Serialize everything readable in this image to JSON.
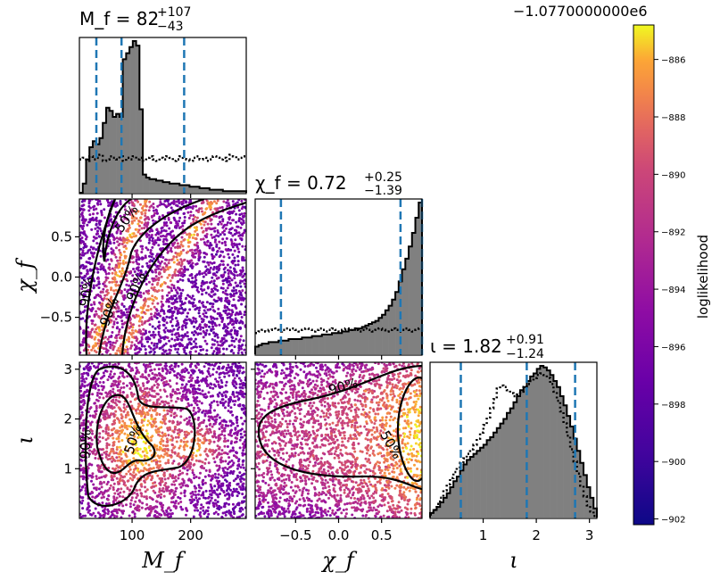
{
  "chart_data": {
    "type": "corner",
    "parameters": [
      {
        "key": "Mf",
        "axis_label": "M_f",
        "range": [
          10,
          295
        ],
        "ticks": [
          100,
          200
        ],
        "tick_labels": [
          "100",
          "200"
        ],
        "title_lhs": "M_f = 82",
        "title_sup": "+107",
        "title_sub": "−43",
        "median": 82,
        "lower": 39,
        "upper": 189
      },
      {
        "key": "chif",
        "axis_label": "χ_f",
        "range": [
          -0.97,
          0.97
        ],
        "ticks": [
          -0.5,
          0.0,
          0.5
        ],
        "tick_labels": [
          "−0.5",
          "0.0",
          "0.5"
        ],
        "title_lhs": "χ_f = 0.72",
        "title_sup": "+0.25",
        "title_sub": "−1.39",
        "median": 0.72,
        "lower": -0.67,
        "upper": 0.97
      },
      {
        "key": "iota",
        "axis_label": "ι",
        "range": [
          0.0,
          3.14
        ],
        "ticks": [
          1,
          2,
          3
        ],
        "tick_labels": [
          "1",
          "2",
          "3"
        ],
        "title_lhs": "ι = 1.82",
        "title_sup": "+0.91",
        "title_sub": "−1.24",
        "median": 1.82,
        "lower": 0.58,
        "upper": 2.73
      }
    ],
    "y_tick_labels": {
      "chif": [
        "0.5",
        "0.0",
        "−0.5"
      ],
      "iota": [
        "3",
        "2",
        "1"
      ]
    },
    "histograms": {
      "Mf": {
        "posterior": [
          0,
          0.06,
          0.22,
          0.3,
          0.34,
          0.32,
          0.36,
          0.46,
          0.56,
          0.54,
          0.5,
          0.52,
          0.5,
          0.88,
          0.92,
          0.96,
          1.0,
          0.97,
          0.55,
          0.12,
          0.1,
          0.09,
          0.09,
          0.08,
          0.08,
          0.07,
          0.07,
          0.06,
          0.06,
          0.06,
          0.05,
          0.05,
          0.05,
          0.04,
          0.04,
          0.04,
          0.03,
          0.03,
          0.03,
          0.02,
          0.02,
          0.02,
          0.02,
          0.01,
          0.01,
          0.01,
          0.01,
          0.01,
          0.01,
          0.01
        ],
        "prior": [
          0.22,
          0.23,
          0.21,
          0.24,
          0.22,
          0.23,
          0.25,
          0.21,
          0.22,
          0.24,
          0.23,
          0.22,
          0.24,
          0.21,
          0.23,
          0.22,
          0.24,
          0.22,
          0.23,
          0.21,
          0.23,
          0.24,
          0.22,
          0.21,
          0.23,
          0.22,
          0.24,
          0.23,
          0.21,
          0.22,
          0.24,
          0.23,
          0.22,
          0.21,
          0.23,
          0.24,
          0.22,
          0.23,
          0.21,
          0.22,
          0.24,
          0.23,
          0.22,
          0.23,
          0.21,
          0.25,
          0.24,
          0.22,
          0.23,
          0.24
        ]
      },
      "chif": {
        "posterior": [
          0.05,
          0.06,
          0.07,
          0.07,
          0.08,
          0.08,
          0.08,
          0.09,
          0.09,
          0.09,
          0.1,
          0.1,
          0.1,
          0.1,
          0.11,
          0.11,
          0.11,
          0.12,
          0.12,
          0.12,
          0.13,
          0.13,
          0.13,
          0.14,
          0.14,
          0.14,
          0.15,
          0.15,
          0.16,
          0.16,
          0.17,
          0.17,
          0.18,
          0.19,
          0.2,
          0.21,
          0.22,
          0.24,
          0.26,
          0.29,
          0.32,
          0.36,
          0.41,
          0.48,
          0.56,
          0.63,
          0.71,
          0.8,
          0.9,
          1.0
        ],
        "prior": [
          0.14,
          0.15,
          0.16,
          0.15,
          0.16,
          0.17,
          0.16,
          0.15,
          0.16,
          0.17,
          0.16,
          0.17,
          0.16,
          0.15,
          0.16,
          0.17,
          0.16,
          0.15,
          0.16,
          0.17,
          0.16,
          0.15,
          0.16,
          0.17,
          0.16,
          0.15,
          0.16,
          0.17,
          0.16,
          0.17,
          0.16,
          0.15,
          0.16,
          0.17,
          0.16,
          0.15,
          0.16,
          0.17,
          0.16,
          0.15,
          0.16,
          0.17,
          0.16,
          0.15,
          0.16,
          0.17,
          0.16,
          0.15,
          0.16,
          0.17
        ]
      },
      "iota": {
        "posterior": [
          0.03,
          0.05,
          0.07,
          0.1,
          0.13,
          0.16,
          0.2,
          0.24,
          0.27,
          0.31,
          0.35,
          0.38,
          0.4,
          0.42,
          0.44,
          0.46,
          0.48,
          0.51,
          0.53,
          0.56,
          0.59,
          0.62,
          0.65,
          0.69,
          0.72,
          0.76,
          0.8,
          0.84,
          0.86,
          0.9,
          0.93,
          0.95,
          0.98,
          1.0,
          0.99,
          0.97,
          0.94,
          0.9,
          0.86,
          0.8,
          0.74,
          0.67,
          0.6,
          0.52,
          0.44,
          0.36,
          0.28,
          0.2,
          0.13,
          0.06
        ],
        "prior": [
          0.02,
          0.05,
          0.09,
          0.13,
          0.18,
          0.22,
          0.26,
          0.3,
          0.33,
          0.36,
          0.39,
          0.42,
          0.45,
          0.48,
          0.52,
          0.56,
          0.61,
          0.66,
          0.72,
          0.78,
          0.85,
          0.87,
          0.86,
          0.84,
          0.82,
          0.8,
          0.81,
          0.83,
          0.86,
          0.88,
          0.9,
          0.92,
          0.94,
          0.95,
          0.94,
          0.92,
          0.88,
          0.83,
          0.77,
          0.7,
          0.62,
          0.54,
          0.45,
          0.37,
          0.29,
          0.21,
          0.14,
          0.08,
          0.04,
          0.01
        ]
      }
    },
    "contour_labels": [
      "90%",
      "50%"
    ],
    "colorbar": {
      "label": "loglikelihood",
      "offset_text": "−1.0770000000e6",
      "range": [
        -902.2,
        -884.8
      ],
      "ticks": [
        -886,
        -888,
        -890,
        -892,
        -894,
        -896,
        -898,
        -900,
        -902
      ],
      "tick_labels": [
        "−886",
        "−888",
        "−890",
        "−892",
        "−894",
        "−896",
        "−898",
        "−900",
        "−902"
      ],
      "colormap": "plasma"
    },
    "colors": {
      "histogram_fill": "#808080",
      "quantile_line": "#1f77b4",
      "contour": "#000000"
    }
  }
}
